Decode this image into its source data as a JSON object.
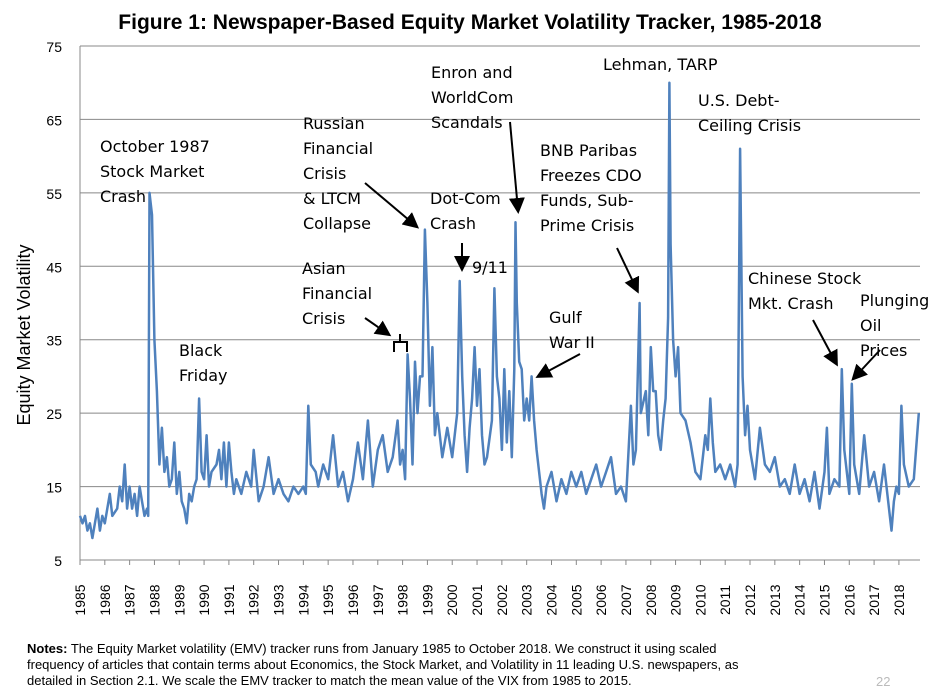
{
  "chart_data": {
    "type": "line",
    "title": "Figure 1: Newspaper-Based Equity Market Volatility Tracker, 1985-2018",
    "y_label": "Equity Market Volatility",
    "color": "#4f81bd",
    "grid": true,
    "xlim": [
      1985,
      2018.85
    ],
    "ylim": [
      5,
      75
    ],
    "yticks": [
      5,
      15,
      25,
      35,
      45,
      55,
      65,
      75
    ],
    "xticks": [
      1985,
      1986,
      1987,
      1988,
      1989,
      1990,
      1991,
      1992,
      1993,
      1994,
      1995,
      1996,
      1997,
      1998,
      1999,
      2000,
      2001,
      2002,
      2003,
      2004,
      2005,
      2006,
      2007,
      2008,
      2009,
      2010,
      2011,
      2012,
      2013,
      2014,
      2015,
      2016,
      2017,
      2018
    ],
    "x": [
      1985.0,
      1985.1,
      1985.2,
      1985.3,
      1985.4,
      1985.5,
      1985.6,
      1985.7,
      1985.8,
      1985.9,
      1986.0,
      1986.2,
      1986.3,
      1986.5,
      1986.6,
      1986.7,
      1986.8,
      1986.9,
      1987.0,
      1987.1,
      1987.2,
      1987.3,
      1987.4,
      1987.5,
      1987.6,
      1987.7,
      1987.75,
      1987.8,
      1987.9,
      1988.0,
      1988.1,
      1988.2,
      1988.3,
      1988.4,
      1988.5,
      1988.6,
      1988.7,
      1988.8,
      1988.9,
      1989.0,
      1989.1,
      1989.2,
      1989.3,
      1989.4,
      1989.5,
      1989.6,
      1989.7,
      1989.8,
      1989.9,
      1990.0,
      1990.1,
      1990.2,
      1990.3,
      1990.5,
      1990.6,
      1990.7,
      1990.8,
      1990.9,
      1991.0,
      1991.1,
      1991.2,
      1991.3,
      1991.5,
      1991.7,
      1991.9,
      1992.0,
      1992.2,
      1992.4,
      1992.6,
      1992.8,
      1993.0,
      1993.2,
      1993.4,
      1993.6,
      1993.8,
      1994.0,
      1994.1,
      1994.2,
      1994.3,
      1994.5,
      1994.6,
      1994.8,
      1995.0,
      1995.2,
      1995.4,
      1995.6,
      1995.8,
      1996.0,
      1996.2,
      1996.4,
      1996.6,
      1996.8,
      1997.0,
      1997.2,
      1997.4,
      1997.6,
      1997.8,
      1997.9,
      1998.0,
      1998.1,
      1998.2,
      1998.3,
      1998.4,
      1998.5,
      1998.6,
      1998.7,
      1998.8,
      1998.9,
      1999.0,
      1999.1,
      1999.2,
      1999.3,
      1999.4,
      1999.6,
      1999.8,
      2000.0,
      2000.2,
      2000.3,
      2000.4,
      2000.5,
      2000.6,
      2000.7,
      2000.8,
      2000.9,
      2001.0,
      2001.1,
      2001.2,
      2001.3,
      2001.4,
      2001.6,
      2001.7,
      2001.8,
      2001.9,
      2002.0,
      2002.1,
      2002.2,
      2002.3,
      2002.4,
      2002.5,
      2002.55,
      2002.6,
      2002.7,
      2002.8,
      2002.9,
      2003.0,
      2003.1,
      2003.2,
      2003.3,
      2003.4,
      2003.5,
      2003.6,
      2003.7,
      2003.8,
      2004.0,
      2004.2,
      2004.4,
      2004.6,
      2004.8,
      2005.0,
      2005.2,
      2005.4,
      2005.6,
      2005.8,
      2006.0,
      2006.2,
      2006.4,
      2006.6,
      2006.8,
      2007.0,
      2007.2,
      2007.3,
      2007.4,
      2007.5,
      2007.55,
      2007.6,
      2007.8,
      2007.9,
      2008.0,
      2008.1,
      2008.2,
      2008.3,
      2008.4,
      2008.5,
      2008.6,
      2008.7,
      2008.75,
      2008.8,
      2008.9,
      2009.0,
      2009.1,
      2009.2,
      2009.4,
      2009.6,
      2009.8,
      2010.0,
      2010.2,
      2010.3,
      2010.4,
      2010.5,
      2010.6,
      2010.8,
      2011.0,
      2011.2,
      2011.4,
      2011.5,
      2011.6,
      2011.7,
      2011.8,
      2011.9,
      2012.0,
      2012.2,
      2012.4,
      2012.6,
      2012.8,
      2013.0,
      2013.2,
      2013.4,
      2013.6,
      2013.8,
      2014.0,
      2014.2,
      2014.4,
      2014.6,
      2014.8,
      2015.0,
      2015.1,
      2015.2,
      2015.4,
      2015.6,
      2015.7,
      2015.8,
      2016.0,
      2016.1,
      2016.2,
      2016.4,
      2016.6,
      2016.8,
      2017.0,
      2017.2,
      2017.4,
      2017.6,
      2017.7,
      2017.8,
      2017.9,
      2018.0,
      2018.1,
      2018.2,
      2018.4,
      2018.6,
      2018.8
    ],
    "values": [
      11,
      10,
      11,
      9,
      10,
      8,
      10,
      12,
      9,
      11,
      10,
      14,
      11,
      12,
      15,
      13,
      18,
      12,
      15,
      12,
      14,
      11,
      15,
      13,
      11,
      12,
      11,
      55,
      52,
      35,
      28,
      18,
      23,
      17,
      19,
      15,
      16,
      21,
      14,
      17,
      13,
      12,
      10,
      14,
      13,
      15,
      16,
      27,
      17,
      16,
      22,
      15,
      17,
      18,
      20,
      16,
      21,
      15,
      21,
      17,
      14,
      16,
      14,
      17,
      15,
      20,
      13,
      15,
      19,
      14,
      16,
      14,
      13,
      15,
      14,
      15,
      14,
      26,
      18,
      17,
      15,
      18,
      16,
      22,
      15,
      17,
      13,
      16,
      21,
      16,
      24,
      15,
      20,
      22,
      17,
      19,
      24,
      18,
      20,
      16,
      33,
      27,
      18,
      32,
      25,
      30,
      30,
      50,
      40,
      26,
      34,
      22,
      25,
      19,
      23,
      19,
      25,
      43,
      30,
      22,
      17,
      23,
      27,
      34,
      26,
      31,
      22,
      18,
      19,
      24,
      42,
      30,
      27,
      20,
      31,
      21,
      28,
      19,
      31,
      51,
      40,
      32,
      31,
      24,
      27,
      24,
      30,
      24,
      20,
      17,
      14,
      12,
      15,
      17,
      13,
      16,
      14,
      17,
      15,
      17,
      14,
      16,
      18,
      15,
      17,
      19,
      14,
      15,
      13,
      26,
      18,
      20,
      33,
      40,
      25,
      28,
      22,
      34,
      28,
      28,
      22,
      20,
      24,
      27,
      38,
      70,
      48,
      35,
      30,
      34,
      25,
      24,
      21,
      17,
      16,
      22,
      20,
      27,
      21,
      17,
      18,
      16,
      18,
      15,
      18,
      61,
      30,
      22,
      26,
      20,
      16,
      23,
      18,
      17,
      19,
      15,
      16,
      14,
      18,
      14,
      16,
      13,
      17,
      12,
      17,
      23,
      14,
      16,
      15,
      31,
      20,
      14,
      29,
      18,
      14,
      22,
      15,
      17,
      13,
      18,
      12,
      9,
      13,
      15,
      14,
      26,
      18,
      15,
      16,
      25
    ],
    "annotations": [
      [
        "October 1987",
        "Stock Market",
        "Crash"
      ],
      [
        "Black",
        "Friday"
      ],
      [
        "Russian",
        "Financial",
        "Crisis",
        "& LTCM",
        "Collapse"
      ],
      [
        "Asian",
        "Financial",
        "Crisis"
      ],
      [
        "Enron and",
        "WorldCom",
        "Scandals"
      ],
      [
        "Dot-Com",
        "Crash"
      ],
      [
        "9/11"
      ],
      [
        "Lehman, TARP"
      ],
      [
        "U.S. Debt-",
        "Ceiling Crisis"
      ],
      [
        "BNB Paribas",
        "Freezes CDO",
        "Funds, Sub-",
        "Prime Crisis"
      ],
      [
        "Gulf",
        "War II"
      ],
      [
        "Chinese Stock",
        "Mkt. Crash"
      ],
      [
        "Plunging",
        "Oil",
        "Prices"
      ]
    ]
  },
  "notes": {
    "label": "Notes:",
    "lines": [
      " The Equity Market volatility (EMV) tracker runs from January 1985 to October 2018. We construct it using scaled",
      "frequency of articles that contain terms about Economics, the Stock Market, and Volatility in 11 leading U.S. newspapers, as",
      "detailed in Section 2.1. We scale the EMV tracker to match the mean value of the VIX from 1985 to 2015."
    ]
  },
  "page_number": "22"
}
